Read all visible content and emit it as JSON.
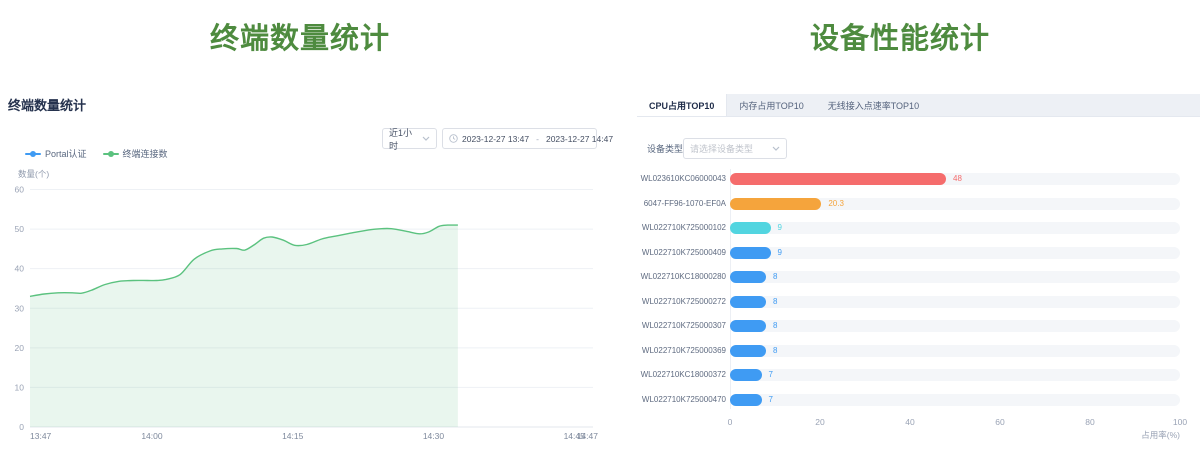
{
  "left_panel": {
    "title": "终端数量统计",
    "card_header": "终端数量统计",
    "time_select": {
      "value": "近1小时"
    },
    "date_range": {
      "start": "2023-12-27 13:47",
      "separator": "-",
      "end": "2023-12-27 14:47"
    },
    "legend": [
      {
        "label": "Portal认证",
        "color": "#3f9bf3"
      },
      {
        "label": "终端连接数",
        "color": "#5bc27f"
      }
    ]
  },
  "right_panel": {
    "title": "设备性能统计",
    "tabs": [
      {
        "label": "CPU占用TOP10",
        "active": true
      },
      {
        "label": "内存占用TOP10",
        "active": false
      },
      {
        "label": "无线接入点速率TOP10",
        "active": false
      }
    ],
    "device_type": {
      "label": "设备类型",
      "placeholder": "请选择设备类型"
    }
  },
  "chart_data": [
    {
      "type": "area",
      "title": "终端数量统计",
      "ylabel": "数量(个)",
      "ylim": [
        0,
        60
      ],
      "y_ticks": [
        0,
        10,
        20,
        30,
        40,
        50,
        60
      ],
      "x_ticks": [
        {
          "label": "13:47",
          "minute": 0
        },
        {
          "label": "14:00",
          "minute": 13
        },
        {
          "label": "14:15",
          "minute": 28
        },
        {
          "label": "14:30",
          "minute": 43
        },
        {
          "label": "14:45",
          "minute": 58
        },
        {
          "label": "14:47",
          "minute": 60
        }
      ],
      "x_range_minutes": [
        0,
        60
      ],
      "grid": true,
      "legend_position": "top-left",
      "series": [
        {
          "name": "Portal认证",
          "color": "#3f9bf3",
          "points": [],
          "note": "no visible data plotted"
        },
        {
          "name": "终端连接数",
          "color": "#5bc27f",
          "fill": "rgba(121,199,152,0.16)",
          "points": [
            [
              0,
              33
            ],
            [
              1.5,
              33.6
            ],
            [
              3,
              33.9
            ],
            [
              4.5,
              33.9
            ],
            [
              5.5,
              33.8
            ],
            [
              6.5,
              34.5
            ],
            [
              8,
              36
            ],
            [
              9.5,
              36.8
            ],
            [
              11,
              37
            ],
            [
              12.5,
              37
            ],
            [
              13.5,
              37
            ],
            [
              14.5,
              37.3
            ],
            [
              16,
              38.5
            ],
            [
              17.5,
              42.4
            ],
            [
              19.2,
              44.5
            ],
            [
              20.5,
              45
            ],
            [
              22,
              45.1
            ],
            [
              22.9,
              44.7
            ],
            [
              24,
              46.2
            ],
            [
              24.9,
              47.7
            ],
            [
              25.8,
              48
            ],
            [
              27,
              47.2
            ],
            [
              28.2,
              45.9
            ],
            [
              29.5,
              46.1
            ],
            [
              31.1,
              47.5
            ],
            [
              32.5,
              48.2
            ],
            [
              34,
              48.9
            ],
            [
              36.1,
              49.8
            ],
            [
              37.5,
              50.1
            ],
            [
              38.5,
              50.1
            ],
            [
              40,
              49.5
            ],
            [
              41.5,
              48.8
            ],
            [
              42.5,
              49.3
            ],
            [
              43.6,
              50.7
            ],
            [
              44.5,
              51
            ],
            [
              45.6,
              51
            ]
          ]
        }
      ]
    },
    {
      "type": "bar",
      "orientation": "horizontal",
      "title": "CPU占用TOP10",
      "xlabel": "占用率(%)",
      "xlim": [
        0,
        100
      ],
      "x_ticks": [
        0,
        20,
        40,
        60,
        80,
        100
      ],
      "categories": [
        "WL023610KC06000043",
        "6047-FF96-1070-EF0A",
        "WL022710K725000102",
        "WL022710K725000409",
        "WL022710KC18000280",
        "WL022710K725000272",
        "WL022710K725000307",
        "WL022710K725000369",
        "WL022710KC18000372",
        "WL022710K725000470"
      ],
      "values": [
        48,
        20.3,
        9,
        9,
        8,
        8,
        8,
        8,
        7,
        7
      ],
      "bar_colors": [
        "#f56c6c",
        "#f5a43c",
        "#52d5e0",
        "#3f9bf3",
        "#3f9bf3",
        "#3f9bf3",
        "#3f9bf3",
        "#3f9bf3",
        "#3f9bf3",
        "#3f9bf3"
      ],
      "track_color": "#f4f6f9"
    }
  ]
}
